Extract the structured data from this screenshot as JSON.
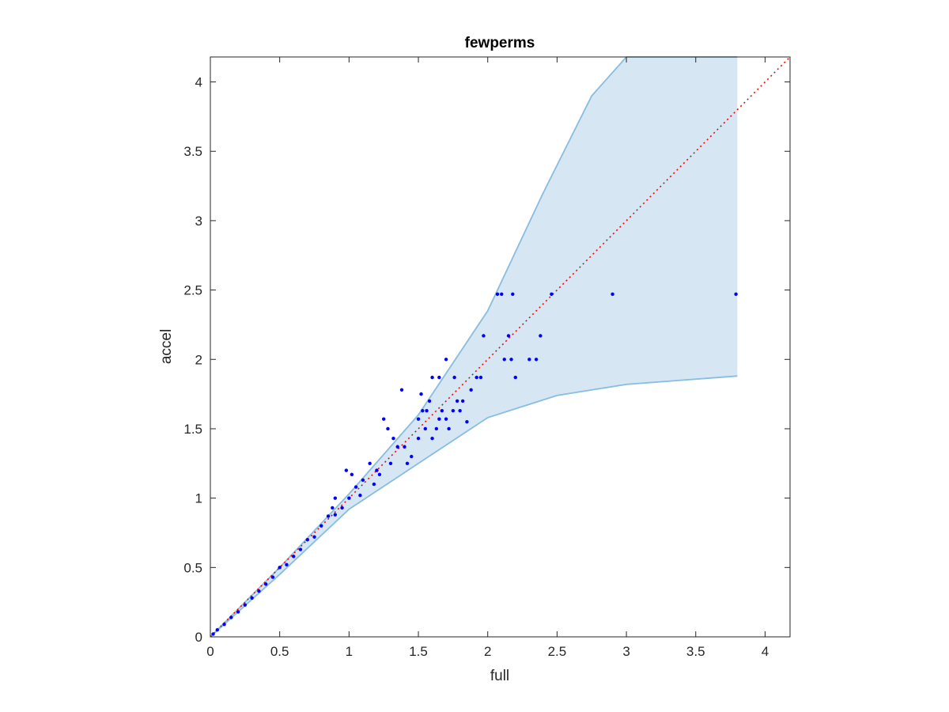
{
  "chart_data": {
    "type": "scatter",
    "title": "fewperms",
    "xlabel": "full",
    "ylabel": "accel",
    "xlim": [
      0,
      4.18
    ],
    "ylim": [
      0,
      4.18
    ],
    "xticks": [
      0,
      0.5,
      1,
      1.5,
      2,
      2.5,
      3,
      3.5,
      4
    ],
    "yticks": [
      0,
      0.5,
      1,
      1.5,
      2,
      2.5,
      3,
      3.5,
      4
    ],
    "xtick_labels": [
      "0",
      "0.5",
      "1",
      "1.5",
      "2",
      "2.5",
      "3",
      "3.5",
      "4"
    ],
    "ytick_labels": [
      "0",
      "0.5",
      "1",
      "1.5",
      "2",
      "2.5",
      "3",
      "3.5",
      "4"
    ],
    "grid": false,
    "band": {
      "color": "#d6e6f3",
      "edge_color": "#86bde0",
      "upper": [
        [
          0,
          0
        ],
        [
          0.5,
          0.5
        ],
        [
          1,
          1.03
        ],
        [
          1.5,
          1.6
        ],
        [
          2,
          2.35
        ],
        [
          2.4,
          3.2
        ],
        [
          2.75,
          3.9
        ],
        [
          3.0,
          4.18
        ],
        [
          3.8,
          4.18
        ]
      ],
      "lower": [
        [
          0,
          0
        ],
        [
          0.5,
          0.45
        ],
        [
          1,
          0.92
        ],
        [
          1.5,
          1.25
        ],
        [
          2,
          1.58
        ],
        [
          2.5,
          1.74
        ],
        [
          3,
          1.82
        ],
        [
          3.8,
          1.88
        ]
      ]
    },
    "reference_line": {
      "style": "dotted",
      "color": "#ff0000",
      "from": [
        0,
        0
      ],
      "to": [
        4.18,
        4.18
      ]
    },
    "series": [
      {
        "marker_color": "#0000ff",
        "points": [
          [
            1.38,
            1.78
          ],
          [
            1.25,
            1.57
          ],
          [
            1.28,
            1.5
          ],
          [
            1.32,
            1.43
          ],
          [
            1.5,
            1.57
          ],
          [
            1.53,
            1.63
          ],
          [
            1.56,
            1.63
          ],
          [
            1.58,
            1.7
          ],
          [
            1.63,
            1.5
          ],
          [
            1.65,
            1.57
          ],
          [
            1.67,
            1.63
          ],
          [
            1.7,
            1.57
          ],
          [
            1.72,
            1.5
          ],
          [
            1.75,
            1.63
          ],
          [
            1.78,
            1.7
          ],
          [
            1.8,
            1.63
          ],
          [
            1.82,
            1.7
          ],
          [
            1.85,
            1.55
          ],
          [
            1.6,
            1.87
          ],
          [
            1.65,
            1.87
          ],
          [
            1.7,
            2.0
          ],
          [
            1.76,
            1.87
          ],
          [
            1.88,
            1.78
          ],
          [
            1.92,
            1.87
          ],
          [
            1.95,
            1.87
          ],
          [
            1.97,
            2.17
          ],
          [
            2.07,
            2.47
          ],
          [
            2.1,
            2.47
          ],
          [
            2.18,
            2.47
          ],
          [
            2.46,
            2.47
          ],
          [
            2.9,
            2.47
          ],
          [
            3.79,
            2.47
          ],
          [
            2.12,
            2.0
          ],
          [
            2.15,
            2.17
          ],
          [
            2.17,
            2.0
          ],
          [
            2.2,
            1.87
          ],
          [
            2.3,
            2.0
          ],
          [
            2.35,
            2.0
          ],
          [
            2.38,
            2.17
          ],
          [
            1.4,
            1.37
          ],
          [
            1.45,
            1.3
          ],
          [
            1.42,
            1.25
          ],
          [
            1.35,
            1.37
          ],
          [
            1.2,
            1.2
          ],
          [
            1.15,
            1.25
          ],
          [
            1.1,
            1.13
          ],
          [
            1.05,
            1.08
          ],
          [
            1.0,
            1.0
          ],
          [
            0.98,
            1.2
          ],
          [
            1.02,
            1.17
          ],
          [
            0.95,
            0.93
          ],
          [
            0.9,
            0.88
          ],
          [
            0.85,
            0.87
          ],
          [
            0.8,
            0.8
          ],
          [
            0.75,
            0.72
          ],
          [
            0.7,
            0.7
          ],
          [
            0.65,
            0.63
          ],
          [
            0.6,
            0.58
          ],
          [
            0.55,
            0.52
          ],
          [
            0.5,
            0.5
          ],
          [
            0.45,
            0.43
          ],
          [
            0.4,
            0.38
          ],
          [
            0.35,
            0.33
          ],
          [
            0.3,
            0.28
          ],
          [
            0.25,
            0.23
          ],
          [
            0.2,
            0.18
          ],
          [
            0.15,
            0.14
          ],
          [
            0.1,
            0.09
          ],
          [
            0.05,
            0.05
          ],
          [
            0.02,
            0.02
          ],
          [
            0.9,
            1.0
          ],
          [
            1.5,
            1.43
          ],
          [
            1.55,
            1.5
          ],
          [
            1.6,
            1.43
          ],
          [
            1.52,
            1.75
          ],
          [
            1.3,
            1.25
          ],
          [
            1.22,
            1.17
          ],
          [
            1.18,
            1.1
          ],
          [
            1.08,
            1.02
          ],
          [
            0.88,
            0.93
          ]
        ]
      }
    ]
  }
}
